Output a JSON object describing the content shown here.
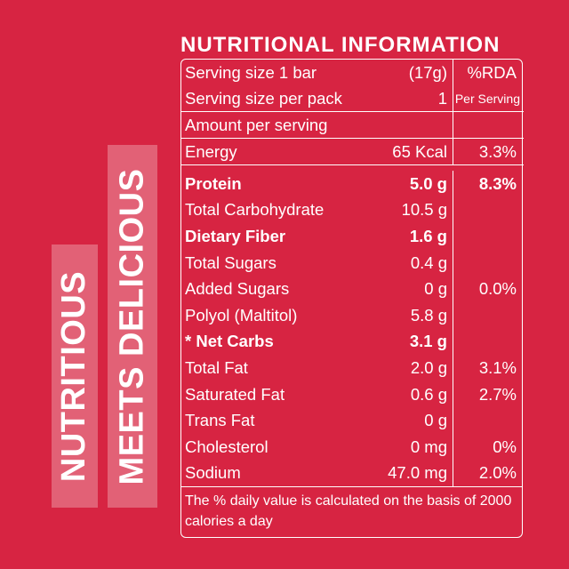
{
  "tags": {
    "nutritious": "NUTRITIOUS",
    "meets_delicious": "MEETS DELICIOUS"
  },
  "title": "NUTRITIONAL INFORMATION",
  "header": {
    "serving_size_label": "Serving size 1 bar",
    "serving_size_value": "(17g)",
    "rda_label": "%RDA",
    "per_pack_label": "Serving size per pack",
    "per_pack_value": "1",
    "per_serving_label": "Per Serving",
    "amount_label": "Amount per serving"
  },
  "energy": {
    "label": "Energy",
    "value": "65 Kcal",
    "pct": "3.3%"
  },
  "rows": [
    {
      "label": "Protein",
      "value": "5.0 g",
      "pct": "8.3%",
      "bold": true
    },
    {
      "label": "Total Carbohydrate",
      "value": "10.5 g",
      "pct": "",
      "bold": false
    },
    {
      "label": "Dietary Fiber",
      "value": "1.6 g",
      "pct": "",
      "bold": true
    },
    {
      "label": "Total Sugars",
      "value": "0.4 g",
      "pct": "",
      "bold": false
    },
    {
      "label": "Added Sugars",
      "value": "0 g",
      "pct": "0.0%",
      "bold": false
    },
    {
      "label": "Polyol (Maltitol)",
      "value": "5.8 g",
      "pct": "",
      "bold": false
    },
    {
      "label": "* Net Carbs",
      "value": "3.1 g",
      "pct": "",
      "bold": true
    },
    {
      "label": "Total Fat",
      "value": "2.0 g",
      "pct": "3.1%",
      "bold": false
    },
    {
      "label": "Saturated Fat",
      "value": "0.6 g",
      "pct": "2.7%",
      "bold": false
    },
    {
      "label": "Trans Fat",
      "value": "0 g",
      "pct": "",
      "bold": false
    },
    {
      "label": "Cholesterol",
      "value": "0 mg",
      "pct": "0%",
      "bold": false
    },
    {
      "label": "Sodium",
      "value": "47.0 mg",
      "pct": "2.0%",
      "bold": false
    }
  ],
  "footnote": "The % daily value is calculated on the basis of 2000 calories a day",
  "colors": {
    "background": "#d72442",
    "text": "#ffffff",
    "tag_box": "#ea6f82"
  }
}
